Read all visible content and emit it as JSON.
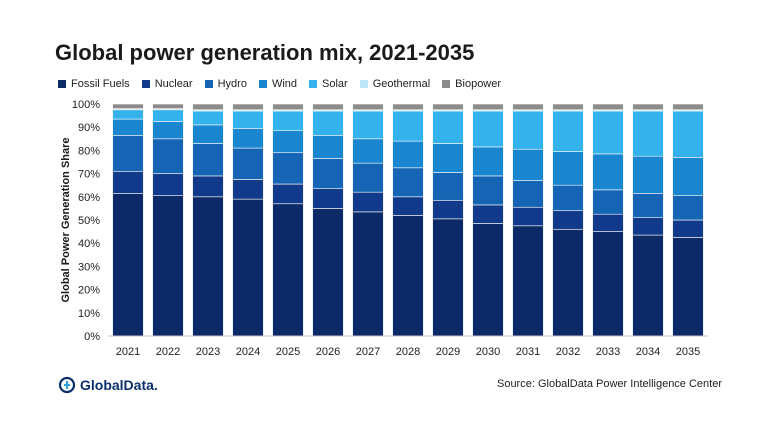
{
  "brand": {
    "logo_text": "GlobalData."
  },
  "source": "Source: GlobalData Power Intelligence Center",
  "chart_data": {
    "type": "bar",
    "stacked": true,
    "title": "Global power generation mix, 2021-2035",
    "ylabel": "Global Power Generation Share",
    "ylim": [
      0,
      100
    ],
    "y_ticks": [
      "0%",
      "10%",
      "20%",
      "30%",
      "40%",
      "50%",
      "60%",
      "70%",
      "80%",
      "90%",
      "100%"
    ],
    "categories": [
      "2021",
      "2022",
      "2023",
      "2024",
      "2025",
      "2026",
      "2027",
      "2028",
      "2029",
      "2030",
      "2031",
      "2032",
      "2033",
      "2034",
      "2035"
    ],
    "legend_position": "top-left",
    "series": [
      {
        "name": "Fossil Fuels",
        "color": "#0b2a66",
        "values": [
          61.5,
          60.5,
          60,
          59,
          57,
          55,
          53.5,
          52,
          50.5,
          48.5,
          47.5,
          46,
          45,
          43.5,
          42.5
        ]
      },
      {
        "name": "Nuclear",
        "color": "#123a8a",
        "values": [
          9.5,
          9.5,
          9,
          8.5,
          8.5,
          8.5,
          8.5,
          8,
          8,
          8,
          8,
          8,
          7.5,
          7.5,
          7.5
        ]
      },
      {
        "name": "Hydro",
        "color": "#1565b4",
        "values": [
          15.5,
          15,
          14,
          13.5,
          13.5,
          13,
          12.5,
          12.5,
          12,
          12.5,
          11.5,
          11,
          10.5,
          10.5,
          10.5
        ]
      },
      {
        "name": "Wind",
        "color": "#1a86d0",
        "values": [
          7,
          7.5,
          8,
          8.5,
          9.5,
          10,
          10.5,
          11.5,
          12.5,
          12.5,
          13.5,
          14.5,
          15.5,
          16,
          16.5
        ]
      },
      {
        "name": "Solar",
        "color": "#33b2ec",
        "values": [
          4,
          5,
          6,
          7.5,
          8.5,
          10.5,
          12,
          13,
          14,
          15.5,
          16.5,
          17.5,
          18.5,
          19.5,
          20
        ]
      },
      {
        "name": "Geothermal",
        "color": "#bfe6f8",
        "values": [
          0.5,
          0.5,
          0.5,
          0.5,
          0.5,
          0.5,
          0.5,
          0.5,
          0.5,
          0.5,
          0.5,
          0.5,
          0.5,
          0.5,
          0.5
        ]
      },
      {
        "name": "Biopower",
        "color": "#8c8c8c",
        "values": [
          2,
          2,
          2.5,
          2.5,
          2.5,
          2.5,
          2.5,
          2.5,
          2.5,
          2.5,
          2.5,
          2.5,
          2.5,
          2.5,
          2.5
        ]
      }
    ]
  }
}
